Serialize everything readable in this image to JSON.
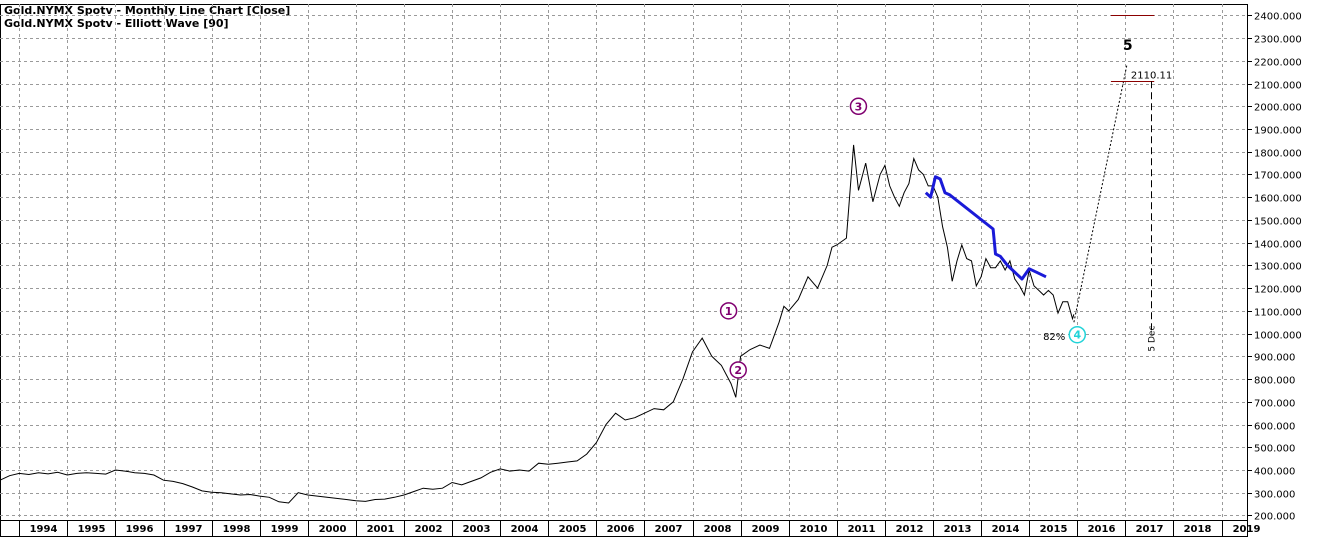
{
  "chart_data": {
    "type": "line",
    "title": "Gold.NYMX Spotv - Monthly Line Chart [Close]",
    "subtitle": "Gold.NYMX Spotv - Elliott Wave [90]",
    "x_range": [
      1993.6,
      2019.55
    ],
    "ylim": [
      180,
      2450
    ],
    "y_ticks": [
      "200.000",
      "300.000",
      "400.000",
      "500.000",
      "600.000",
      "700.000",
      "800.000",
      "900.000",
      "1000.000",
      "1100.000",
      "1200.000",
      "1300.000",
      "1400.000",
      "1500.000",
      "1600.000",
      "1700.000",
      "1800.000",
      "1900.000",
      "2000.000",
      "2100.000",
      "2200.000",
      "2300.000",
      "2400.000"
    ],
    "x_ticks": [
      "1994",
      "1995",
      "1996",
      "1997",
      "1998",
      "1999",
      "2000",
      "2001",
      "2002",
      "2003",
      "2004",
      "2005",
      "2006",
      "2007",
      "2008",
      "2009",
      "2010",
      "2011",
      "2012",
      "2013",
      "2014",
      "2015",
      "2016",
      "2017",
      "2018",
      "2019"
    ],
    "grid": true,
    "colors": {
      "price": "#000000",
      "channel": "#1a1ad8",
      "wave_label": "#800070",
      "wave4": "#22d3d8",
      "target_line": "#8b0000"
    },
    "series": [
      {
        "role": "price",
        "points": [
          [
            1993.6,
            355
          ],
          [
            1993.8,
            375
          ],
          [
            1994.0,
            385
          ],
          [
            1994.2,
            380
          ],
          [
            1994.4,
            388
          ],
          [
            1994.6,
            383
          ],
          [
            1994.8,
            390
          ],
          [
            1995.0,
            378
          ],
          [
            1995.2,
            385
          ],
          [
            1995.4,
            388
          ],
          [
            1995.6,
            385
          ],
          [
            1995.8,
            382
          ],
          [
            1996.0,
            400
          ],
          [
            1996.2,
            395
          ],
          [
            1996.4,
            388
          ],
          [
            1996.6,
            385
          ],
          [
            1996.8,
            378
          ],
          [
            1997.0,
            355
          ],
          [
            1997.2,
            350
          ],
          [
            1997.4,
            340
          ],
          [
            1997.6,
            325
          ],
          [
            1997.8,
            308
          ],
          [
            1998.0,
            302
          ],
          [
            1998.2,
            300
          ],
          [
            1998.4,
            295
          ],
          [
            1998.6,
            290
          ],
          [
            1998.8,
            292
          ],
          [
            1999.0,
            285
          ],
          [
            1999.2,
            280
          ],
          [
            1999.4,
            260
          ],
          [
            1999.6,
            255
          ],
          [
            1999.8,
            300
          ],
          [
            2000.0,
            290
          ],
          [
            2000.2,
            285
          ],
          [
            2000.4,
            280
          ],
          [
            2000.6,
            275
          ],
          [
            2000.8,
            270
          ],
          [
            2001.0,
            265
          ],
          [
            2001.2,
            262
          ],
          [
            2001.4,
            270
          ],
          [
            2001.6,
            272
          ],
          [
            2001.8,
            280
          ],
          [
            2002.0,
            290
          ],
          [
            2002.2,
            305
          ],
          [
            2002.4,
            320
          ],
          [
            2002.6,
            315
          ],
          [
            2002.8,
            320
          ],
          [
            2003.0,
            345
          ],
          [
            2003.2,
            335
          ],
          [
            2003.4,
            350
          ],
          [
            2003.6,
            365
          ],
          [
            2003.8,
            390
          ],
          [
            2004.0,
            405
          ],
          [
            2004.2,
            395
          ],
          [
            2004.4,
            400
          ],
          [
            2004.6,
            395
          ],
          [
            2004.8,
            430
          ],
          [
            2005.0,
            425
          ],
          [
            2005.2,
            430
          ],
          [
            2005.4,
            435
          ],
          [
            2005.6,
            440
          ],
          [
            2005.8,
            470
          ],
          [
            2006.0,
            520
          ],
          [
            2006.2,
            600
          ],
          [
            2006.4,
            650
          ],
          [
            2006.6,
            620
          ],
          [
            2006.8,
            630
          ],
          [
            2007.0,
            650
          ],
          [
            2007.2,
            670
          ],
          [
            2007.4,
            665
          ],
          [
            2007.6,
            700
          ],
          [
            2007.8,
            800
          ],
          [
            2008.0,
            920
          ],
          [
            2008.2,
            980
          ],
          [
            2008.4,
            900
          ],
          [
            2008.6,
            860
          ],
          [
            2008.8,
            780
          ],
          [
            2008.9,
            720
          ],
          [
            2009.0,
            900
          ],
          [
            2009.2,
            930
          ],
          [
            2009.4,
            950
          ],
          [
            2009.6,
            935
          ],
          [
            2009.8,
            1050
          ],
          [
            2009.9,
            1120
          ],
          [
            2010.0,
            1100
          ],
          [
            2010.2,
            1150
          ],
          [
            2010.4,
            1250
          ],
          [
            2010.6,
            1200
          ],
          [
            2010.8,
            1300
          ],
          [
            2010.9,
            1380
          ],
          [
            2011.0,
            1390
          ],
          [
            2011.2,
            1420
          ],
          [
            2011.35,
            1830
          ],
          [
            2011.45,
            1630
          ],
          [
            2011.6,
            1750
          ],
          [
            2011.75,
            1580
          ],
          [
            2011.9,
            1700
          ],
          [
            2012.0,
            1740
          ],
          [
            2012.1,
            1650
          ],
          [
            2012.2,
            1600
          ],
          [
            2012.3,
            1560
          ],
          [
            2012.4,
            1620
          ],
          [
            2012.5,
            1660
          ],
          [
            2012.6,
            1770
          ],
          [
            2012.7,
            1720
          ],
          [
            2012.8,
            1700
          ],
          [
            2012.9,
            1650
          ],
          [
            2013.0,
            1650
          ],
          [
            2013.1,
            1600
          ],
          [
            2013.2,
            1470
          ],
          [
            2013.3,
            1380
          ],
          [
            2013.4,
            1230
          ],
          [
            2013.5,
            1320
          ],
          [
            2013.6,
            1390
          ],
          [
            2013.7,
            1330
          ],
          [
            2013.8,
            1320
          ],
          [
            2013.9,
            1210
          ],
          [
            2014.0,
            1250
          ],
          [
            2014.1,
            1330
          ],
          [
            2014.2,
            1290
          ],
          [
            2014.3,
            1290
          ],
          [
            2014.4,
            1320
          ],
          [
            2014.5,
            1280
          ],
          [
            2014.6,
            1320
          ],
          [
            2014.7,
            1240
          ],
          [
            2014.8,
            1210
          ],
          [
            2014.9,
            1170
          ],
          [
            2015.0,
            1280
          ],
          [
            2015.1,
            1210
          ],
          [
            2015.2,
            1190
          ],
          [
            2015.3,
            1170
          ],
          [
            2015.4,
            1190
          ],
          [
            2015.5,
            1170
          ],
          [
            2015.6,
            1090
          ],
          [
            2015.7,
            1140
          ],
          [
            2015.8,
            1140
          ],
          [
            2015.9,
            1065
          ],
          [
            2015.93,
            1085
          ]
        ]
      },
      {
        "role": "channel",
        "points": [
          [
            2012.85,
            1620
          ],
          [
            2012.95,
            1600
          ],
          [
            2013.05,
            1690
          ],
          [
            2013.15,
            1680
          ],
          [
            2013.25,
            1620
          ],
          [
            2013.35,
            1610
          ],
          [
            2014.25,
            1460
          ],
          [
            2014.3,
            1350
          ],
          [
            2014.4,
            1340
          ],
          [
            2014.55,
            1300
          ],
          [
            2014.85,
            1240
          ],
          [
            2015.0,
            1285
          ],
          [
            2015.15,
            1270
          ],
          [
            2015.35,
            1250
          ]
        ]
      }
    ],
    "projection": {
      "from": [
        2015.93,
        1050
      ],
      "to": [
        2017.03,
        2180
      ]
    },
    "targets": [
      {
        "x_start": 2016.7,
        "x_end": 2017.6,
        "y": 2400
      },
      {
        "x_start": 2016.7,
        "x_end": 2017.6,
        "y": 2110,
        "label": "2110.11"
      }
    ],
    "time_marker": {
      "x": 2017.53,
      "y_start": 2110,
      "y_end": 1000,
      "label": "5 Dec"
    },
    "wave_labels": [
      {
        "text": "1",
        "x": 2008.75,
        "y": 1100,
        "style": "circle"
      },
      {
        "text": "2",
        "x": 2008.95,
        "y": 840,
        "style": "circle"
      },
      {
        "text": "3",
        "x": 2011.45,
        "y": 2000,
        "style": "circle"
      },
      {
        "text": "4",
        "x": 2016.0,
        "y": 995,
        "style": "circle"
      },
      {
        "text": "5",
        "x": 2017.05,
        "y": 2270,
        "style": "plain"
      }
    ],
    "annotations": [
      {
        "text": "82%",
        "x": 2015.52,
        "y": 990
      }
    ]
  }
}
